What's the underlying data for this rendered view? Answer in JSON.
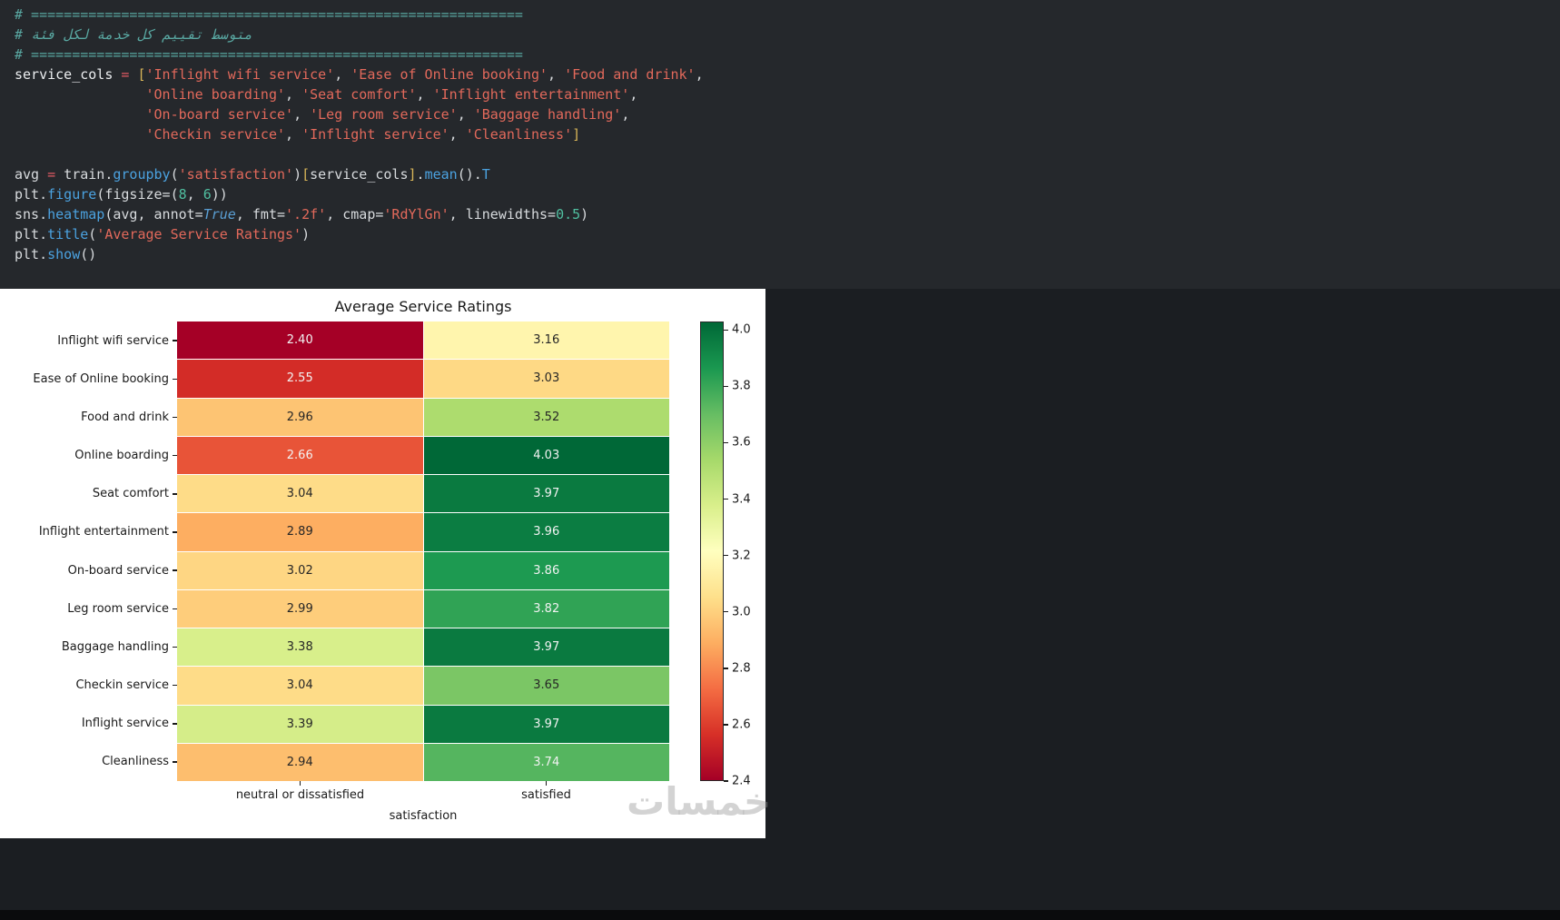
{
  "code_cell": {
    "lines": [
      [
        {
          "c": "com",
          "t": "# ============================================================"
        }
      ],
      [
        {
          "c": "com",
          "t": "# متوسط تقييم كل خدمة لكل فئة"
        }
      ],
      [
        {
          "c": "com",
          "t": "# ============================================================"
        }
      ],
      [
        {
          "c": "var",
          "t": "service_cols"
        },
        {
          "c": "op",
          "t": " = "
        },
        {
          "c": "brk",
          "t": "["
        },
        {
          "c": "str",
          "t": "'Inflight wifi service'"
        },
        {
          "c": "pln",
          "t": ", "
        },
        {
          "c": "str",
          "t": "'Ease of Online booking'"
        },
        {
          "c": "pln",
          "t": ", "
        },
        {
          "c": "str",
          "t": "'Food and drink'"
        },
        {
          "c": "pln",
          "t": ","
        }
      ],
      [
        {
          "c": "pln",
          "t": "                "
        },
        {
          "c": "str",
          "t": "'Online boarding'"
        },
        {
          "c": "pln",
          "t": ", "
        },
        {
          "c": "str",
          "t": "'Seat comfort'"
        },
        {
          "c": "pln",
          "t": ", "
        },
        {
          "c": "str",
          "t": "'Inflight entertainment'"
        },
        {
          "c": "pln",
          "t": ","
        }
      ],
      [
        {
          "c": "pln",
          "t": "                "
        },
        {
          "c": "str",
          "t": "'On-board service'"
        },
        {
          "c": "pln",
          "t": ", "
        },
        {
          "c": "str",
          "t": "'Leg room service'"
        },
        {
          "c": "pln",
          "t": ", "
        },
        {
          "c": "str",
          "t": "'Baggage handling'"
        },
        {
          "c": "pln",
          "t": ","
        }
      ],
      [
        {
          "c": "pln",
          "t": "                "
        },
        {
          "c": "str",
          "t": "'Checkin service'"
        },
        {
          "c": "pln",
          "t": ", "
        },
        {
          "c": "str",
          "t": "'Inflight service'"
        },
        {
          "c": "pln",
          "t": ", "
        },
        {
          "c": "str",
          "t": "'Cleanliness'"
        },
        {
          "c": "brk",
          "t": "]"
        }
      ],
      [],
      [
        {
          "c": "pln",
          "t": "avg"
        },
        {
          "c": "op",
          "t": " = "
        },
        {
          "c": "pln",
          "t": "train."
        },
        {
          "c": "fn",
          "t": "groupby"
        },
        {
          "c": "pln",
          "t": "("
        },
        {
          "c": "str",
          "t": "'satisfaction'"
        },
        {
          "c": "pln",
          "t": ")"
        },
        {
          "c": "brk",
          "t": "["
        },
        {
          "c": "pln",
          "t": "service_cols"
        },
        {
          "c": "brk",
          "t": "]"
        },
        {
          "c": "pln",
          "t": "."
        },
        {
          "c": "fn",
          "t": "mean"
        },
        {
          "c": "pln",
          "t": "()."
        },
        {
          "c": "fn",
          "t": "T"
        }
      ],
      [
        {
          "c": "pln",
          "t": "plt."
        },
        {
          "c": "fn",
          "t": "figure"
        },
        {
          "c": "pln",
          "t": "(figsize=("
        },
        {
          "c": "num",
          "t": "8"
        },
        {
          "c": "pln",
          "t": ", "
        },
        {
          "c": "num",
          "t": "6"
        },
        {
          "c": "pln",
          "t": "))"
        }
      ],
      [
        {
          "c": "pln",
          "t": "sns."
        },
        {
          "c": "fn",
          "t": "heatmap"
        },
        {
          "c": "pln",
          "t": "(avg, annot="
        },
        {
          "c": "kw",
          "t": "True"
        },
        {
          "c": "pln",
          "t": ", fmt="
        },
        {
          "c": "str",
          "t": "'.2f'"
        },
        {
          "c": "pln",
          "t": ", cmap="
        },
        {
          "c": "str",
          "t": "'RdYlGn'"
        },
        {
          "c": "pln",
          "t": ", linewidths="
        },
        {
          "c": "num",
          "t": "0.5"
        },
        {
          "c": "pln",
          "t": ")"
        }
      ],
      [
        {
          "c": "pln",
          "t": "plt."
        },
        {
          "c": "fn",
          "t": "title"
        },
        {
          "c": "pln",
          "t": "("
        },
        {
          "c": "str",
          "t": "'Average Service Ratings'"
        },
        {
          "c": "pln",
          "t": ")"
        }
      ],
      [
        {
          "c": "pln",
          "t": "plt."
        },
        {
          "c": "fn",
          "t": "show"
        },
        {
          "c": "pln",
          "t": "()"
        }
      ]
    ]
  },
  "chart_data": {
    "type": "heatmap",
    "title": "Average Service Ratings",
    "xlabel": "satisfaction",
    "ylabel": "",
    "columns": [
      "neutral or dissatisfied",
      "satisfied"
    ],
    "rows": [
      "Inflight wifi service",
      "Ease of Online booking",
      "Food and drink",
      "Online boarding",
      "Seat comfort",
      "Inflight entertainment",
      "On-board service",
      "Leg room service",
      "Baggage handling",
      "Checkin service",
      "Inflight service",
      "Cleanliness"
    ],
    "values": [
      [
        2.4,
        3.16
      ],
      [
        2.55,
        3.03
      ],
      [
        2.96,
        3.52
      ],
      [
        2.66,
        4.03
      ],
      [
        3.04,
        3.97
      ],
      [
        2.89,
        3.96
      ],
      [
        3.02,
        3.86
      ],
      [
        2.99,
        3.82
      ],
      [
        3.38,
        3.97
      ],
      [
        3.04,
        3.65
      ],
      [
        3.39,
        3.97
      ],
      [
        2.94,
        3.74
      ]
    ],
    "value_format": ".2f",
    "cmap": "RdYlGn",
    "vmin": 2.4,
    "vmax": 4.03,
    "colorbar_ticks": [
      4.0,
      3.8,
      3.6,
      3.4,
      3.2,
      3.0,
      2.8,
      2.6,
      2.4
    ],
    "linewidths": 0.5,
    "grid": false,
    "legend_position": "right-colorbar"
  },
  "watermark": {
    "text": "خمسات"
  }
}
